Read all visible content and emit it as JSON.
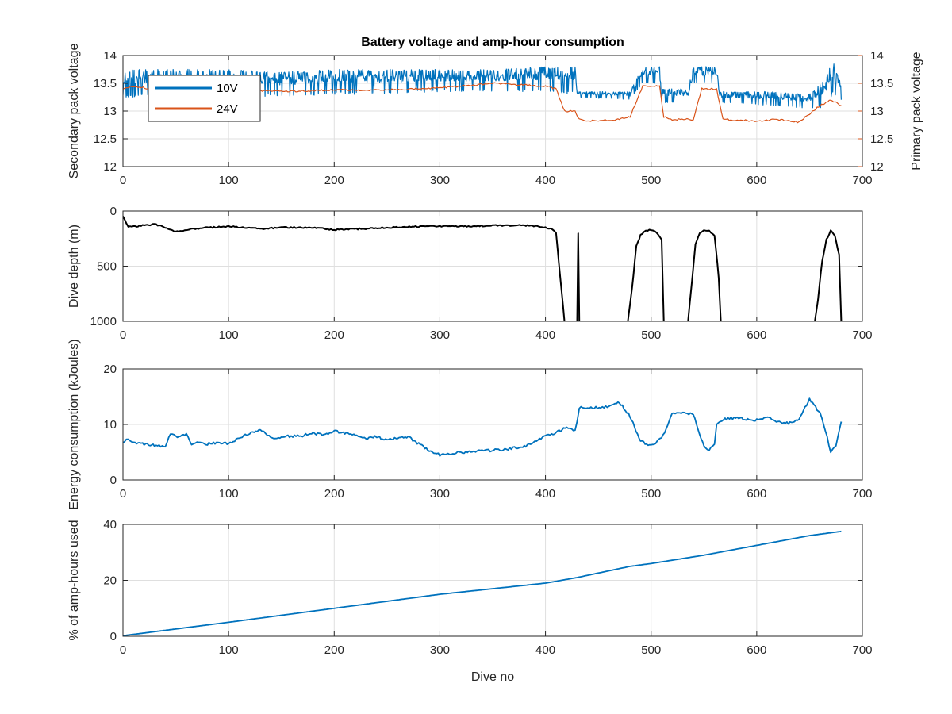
{
  "figure": {
    "title": "Battery voltage and amp-hour consumption",
    "xlabel": "Dive no"
  },
  "chart_data": [
    {
      "type": "line",
      "title": "Battery voltage and amp-hour consumption",
      "xlabel": "",
      "ylabel": "Secondary pack voltage",
      "ylabel_right": "Primary pack voltage",
      "xlim": [
        0,
        700
      ],
      "ylim": [
        12,
        14
      ],
      "ylim_right": [
        12,
        14
      ],
      "xticks": [
        "0",
        "100",
        "200",
        "300",
        "400",
        "500",
        "600",
        "700"
      ],
      "yticks": [
        "12",
        "12.5",
        "13",
        "13.5",
        "14"
      ],
      "yticks_right": [
        "12",
        "12.5",
        "13",
        "13.5",
        "14"
      ],
      "grid": true,
      "legend_position": "top-left",
      "colors": {
        "secondary": "#0072BD",
        "primary": "#D95319"
      },
      "series": [
        {
          "name": "10V",
          "axis": "left",
          "color": "#0072BD",
          "band": [
            [
              0,
              13.25,
              13.7
            ],
            [
              10,
              13.25,
              13.75
            ],
            [
              30,
              13.3,
              13.75
            ],
            [
              60,
              13.25,
              13.75
            ],
            [
              100,
              13.3,
              13.75
            ],
            [
              150,
              13.25,
              13.7
            ],
            [
              200,
              13.3,
              13.75
            ],
            [
              250,
              13.3,
              13.75
            ],
            [
              300,
              13.35,
              13.75
            ],
            [
              350,
              13.35,
              13.75
            ],
            [
              400,
              13.35,
              13.8
            ],
            [
              428,
              13.3,
              13.8
            ],
            [
              430,
              13.25,
              13.35
            ],
            [
              480,
              13.2,
              13.35
            ],
            [
              492,
              13.5,
              13.8
            ],
            [
              508,
              13.5,
              13.8
            ],
            [
              510,
              13.15,
              13.4
            ],
            [
              535,
              13.15,
              13.4
            ],
            [
              540,
              13.5,
              13.8
            ],
            [
              562,
              13.5,
              13.8
            ],
            [
              565,
              13.15,
              13.35
            ],
            [
              610,
              13.1,
              13.35
            ],
            [
              650,
              13.05,
              13.3
            ],
            [
              665,
              13.05,
              13.6
            ],
            [
              672,
              13.3,
              13.9
            ],
            [
              680,
              13.2,
              13.5
            ]
          ]
        },
        {
          "name": "24V",
          "axis": "right",
          "color": "#D95319",
          "x": [
            0,
            10,
            40,
            60,
            100,
            150,
            200,
            250,
            300,
            350,
            400,
            410,
            418,
            428,
            432,
            440,
            470,
            480,
            492,
            508,
            512,
            520,
            540,
            548,
            562,
            568,
            600,
            620,
            640,
            650,
            660,
            670,
            680
          ],
          "values": [
            13.4,
            13.45,
            13.35,
            13.4,
            13.4,
            13.35,
            13.38,
            13.38,
            13.42,
            13.5,
            13.45,
            13.4,
            13.0,
            13.0,
            12.85,
            12.82,
            12.85,
            12.9,
            13.45,
            13.45,
            12.9,
            12.85,
            12.85,
            13.4,
            13.4,
            12.85,
            12.82,
            12.85,
            12.8,
            12.95,
            13.1,
            13.2,
            13.1
          ]
        }
      ]
    },
    {
      "type": "line",
      "xlabel": "",
      "ylabel": "Dive depth (m)",
      "xlim": [
        0,
        700
      ],
      "ylim": [
        0,
        1000
      ],
      "y_reversed": true,
      "xticks": [
        "0",
        "100",
        "200",
        "300",
        "400",
        "500",
        "600",
        "700"
      ],
      "yticks": [
        "0",
        "500",
        "1000"
      ],
      "grid": true,
      "colors": {
        "line": "#000000"
      },
      "series": [
        {
          "name": "",
          "x": [
            0,
            5,
            10,
            20,
            30,
            40,
            50,
            60,
            70,
            80,
            100,
            130,
            150,
            180,
            200,
            230,
            250,
            280,
            300,
            330,
            350,
            380,
            395,
            400,
            405,
            410,
            414,
            418,
            428,
            430,
            431,
            432,
            433,
            436,
            440,
            470,
            478,
            482,
            486,
            490,
            495,
            500,
            505,
            510,
            512,
            520,
            535,
            538,
            542,
            546,
            550,
            555,
            560,
            564,
            566,
            580,
            600,
            620,
            640,
            650,
            655,
            658,
            662,
            666,
            670,
            674,
            678,
            680
          ],
          "values": [
            50,
            140,
            140,
            130,
            120,
            150,
            190,
            170,
            160,
            150,
            140,
            160,
            150,
            150,
            170,
            160,
            150,
            140,
            140,
            140,
            130,
            130,
            140,
            150,
            160,
            200,
            600,
            1000,
            1000,
            1000,
            200,
            1000,
            1000,
            1000,
            1000,
            1000,
            1000,
            700,
            320,
            220,
            180,
            170,
            190,
            260,
            1000,
            1000,
            1000,
            700,
            300,
            200,
            170,
            180,
            220,
            600,
            1000,
            1000,
            1000,
            1000,
            1000,
            1000,
            1000,
            800,
            450,
            260,
            180,
            220,
            400,
            1000
          ]
        }
      ]
    },
    {
      "type": "line",
      "xlabel": "",
      "ylabel": "Energy consumption (kJoules)",
      "xlim": [
        0,
        700
      ],
      "ylim": [
        0,
        20
      ],
      "xticks": [
        "0",
        "100",
        "200",
        "300",
        "400",
        "500",
        "600",
        "700"
      ],
      "yticks": [
        "0",
        "10",
        "20"
      ],
      "grid": true,
      "colors": {
        "line": "#0072BD"
      },
      "series": [
        {
          "name": "",
          "x": [
            0,
            5,
            10,
            20,
            30,
            40,
            45,
            50,
            60,
            65,
            70,
            80,
            90,
            100,
            110,
            120,
            130,
            135,
            140,
            150,
            170,
            180,
            190,
            200,
            210,
            220,
            230,
            240,
            250,
            260,
            270,
            280,
            290,
            300,
            320,
            340,
            360,
            380,
            390,
            400,
            410,
            420,
            428,
            430,
            432,
            440,
            460,
            470,
            480,
            490,
            500,
            510,
            520,
            530,
            540,
            550,
            555,
            560,
            562,
            570,
            580,
            590,
            600,
            610,
            620,
            630,
            640,
            650,
            660,
            665,
            670,
            675,
            680
          ],
          "values": [
            6.8,
            7.5,
            6.8,
            6.5,
            6.2,
            6.0,
            8.3,
            7.8,
            8.2,
            6.5,
            7.0,
            6.5,
            6.8,
            6.5,
            7.5,
            8.5,
            9.0,
            8.5,
            7.5,
            7.8,
            8.0,
            8.5,
            8.0,
            8.8,
            8.5,
            8.0,
            7.5,
            7.8,
            7.2,
            7.5,
            7.8,
            6.5,
            5.2,
            4.5,
            5.0,
            5.2,
            5.5,
            6.0,
            7.0,
            8.0,
            8.5,
            9.5,
            9.0,
            10.5,
            13.0,
            13.0,
            13.2,
            14.0,
            11.5,
            7.0,
            6.2,
            7.5,
            11.8,
            12.0,
            11.8,
            6.0,
            5.5,
            6.5,
            10.0,
            11.0,
            11.2,
            11.0,
            10.8,
            11.5,
            10.5,
            10.2,
            11.0,
            14.5,
            12.0,
            9.0,
            5.0,
            6.0,
            10.5
          ]
        }
      ]
    },
    {
      "type": "line",
      "xlabel": "Dive no",
      "ylabel": "% of amp-hours used",
      "xlim": [
        0,
        700
      ],
      "ylim": [
        0,
        40
      ],
      "xticks": [
        "0",
        "100",
        "200",
        "300",
        "400",
        "500",
        "600",
        "700"
      ],
      "yticks": [
        "0",
        "20",
        "40"
      ],
      "grid": true,
      "colors": {
        "line": "#0072BD"
      },
      "series": [
        {
          "name": "",
          "x": [
            0,
            100,
            200,
            300,
            400,
            430,
            480,
            500,
            550,
            600,
            650,
            680
          ],
          "values": [
            0.2,
            5,
            10,
            15,
            19,
            21,
            25,
            26,
            29,
            32.5,
            36,
            37.5
          ]
        }
      ]
    }
  ]
}
